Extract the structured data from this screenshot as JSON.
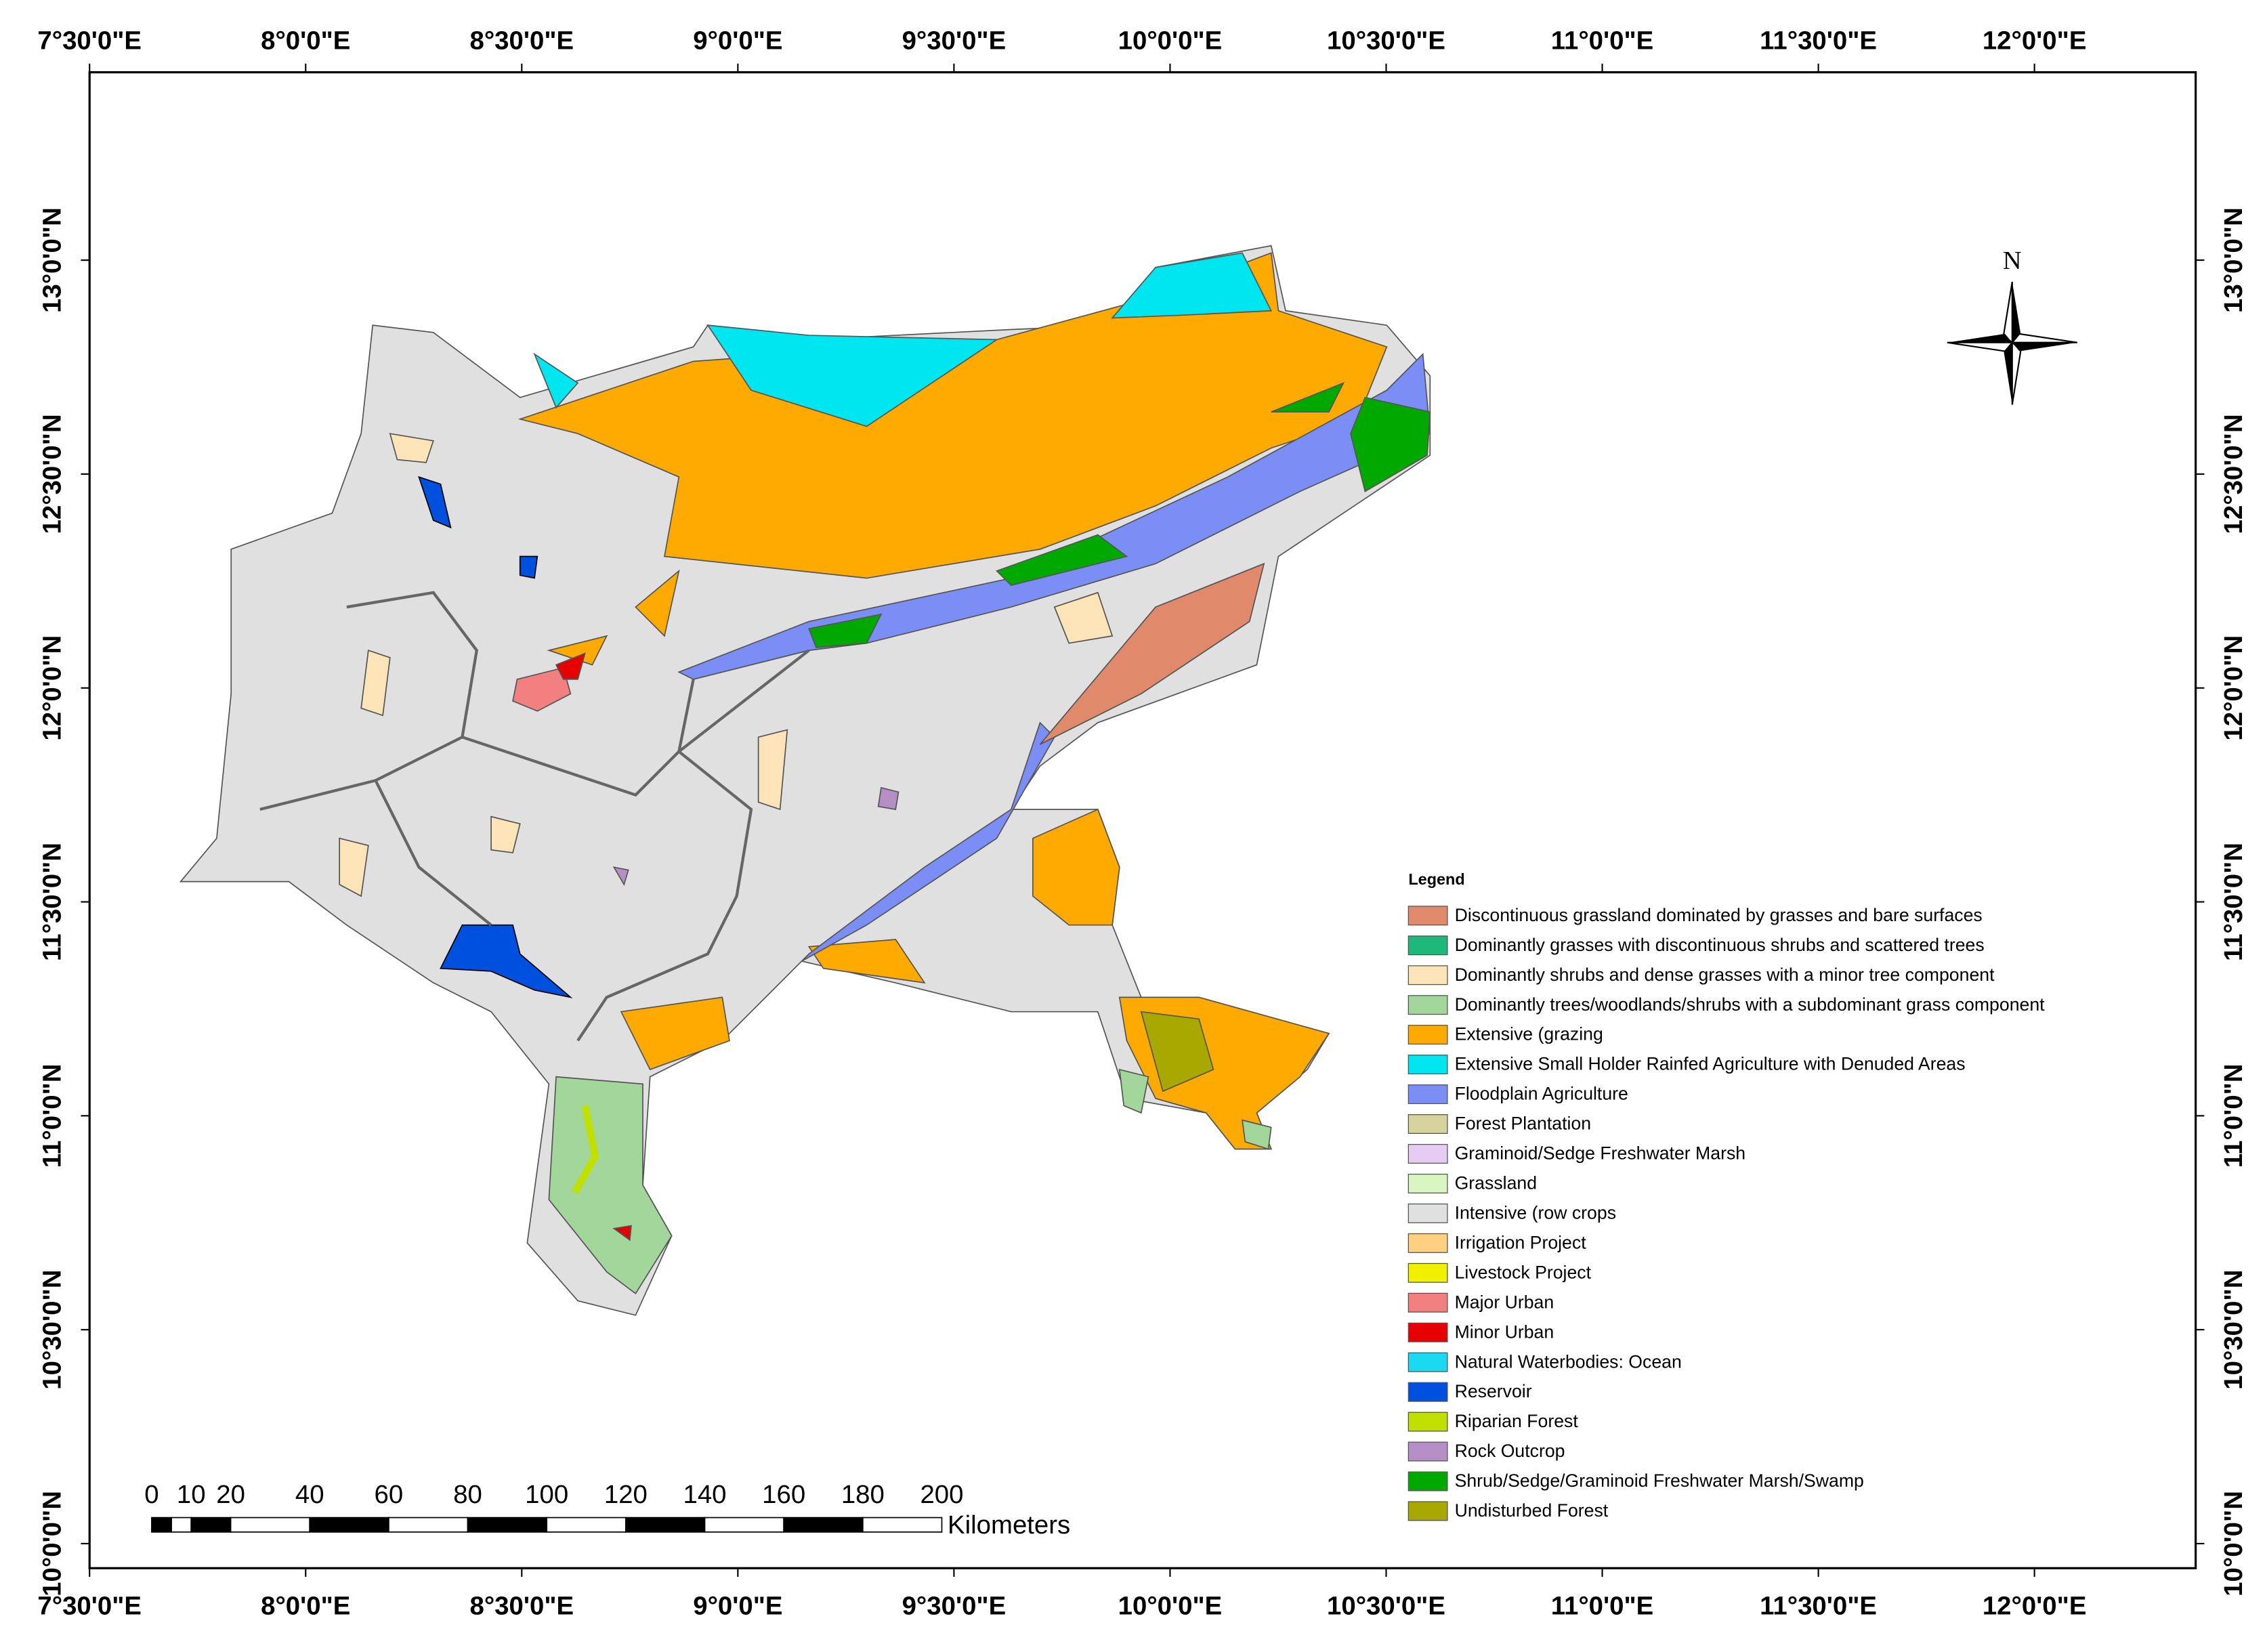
{
  "map": {
    "lon_labels": [
      "7°30'0\"E",
      "8°0'0\"E",
      "8°30'0\"E",
      "9°0'0\"E",
      "9°30'0\"E",
      "10°0'0\"E",
      "10°30'0\"E",
      "11°0'0\"E",
      "11°30'0\"E",
      "12°0'0\"E"
    ],
    "lat_labels": [
      "13°0'0\"N",
      "12°30'0\"N",
      "12°0'0\"N",
      "11°30'0\"N",
      "11°0'0\"N",
      "10°30'0\"N",
      "10°0'0\"N"
    ],
    "north_label": "N",
    "scale_bar": {
      "ticks": [
        0,
        10,
        20,
        40,
        60,
        80,
        100,
        120,
        140,
        160,
        180,
        200
      ],
      "unit": "Kilometers"
    },
    "legend": {
      "title": "Legend",
      "items": [
        {
          "label": "Discontinuous grassland dominated by grasses and bare surfaces",
          "color": "#e0896b"
        },
        {
          "label": "Dominantly grasses with discontinuous shrubs and scattered trees",
          "color": "#1db87a"
        },
        {
          "label": "Dominantly shrubs and dense grasses with a minor tree component",
          "color": "#fde4b8"
        },
        {
          "label": "Dominantly trees/woodlands/shrubs with a subdominant grass component",
          "color": "#a3d69b"
        },
        {
          "label": "Extensive (grazing",
          "color": "#ffaa00"
        },
        {
          "label": "Extensive Small Holder Rainfed Agriculture with Denuded Areas",
          "color": "#00e6f0"
        },
        {
          "label": "Floodplain Agriculture",
          "color": "#7a8ef5"
        },
        {
          "label": "Forest Plantation",
          "color": "#d6d39c"
        },
        {
          "label": "Graminoid/Sedge Freshwater Marsh",
          "color": "#e6ccf5"
        },
        {
          "label": "Grassland",
          "color": "#d9f5c0"
        },
        {
          "label": "Intensive (row crops",
          "color": "#e0e0e0"
        },
        {
          "label": "Irrigation Project",
          "color": "#ffd080"
        },
        {
          "label": "Livestock Project",
          "color": "#f0f000"
        },
        {
          "label": "Major Urban",
          "color": "#f28080"
        },
        {
          "label": "Minor Urban",
          "color": "#e60000"
        },
        {
          "label": "Natural Waterbodies: Ocean",
          "color": "#1ad9f0"
        },
        {
          "label": "Reservoir",
          "color": "#0050e0"
        },
        {
          "label": "Riparian Forest",
          "color": "#c0e000"
        },
        {
          "label": "Rock Outcrop",
          "color": "#b48ec4"
        },
        {
          "label": "Shrub/Sedge/Graminoid Freshwater Marsh/Swamp",
          "color": "#00a800"
        },
        {
          "label": "Undisturbed Forest",
          "color": "#a8a800"
        }
      ]
    }
  }
}
